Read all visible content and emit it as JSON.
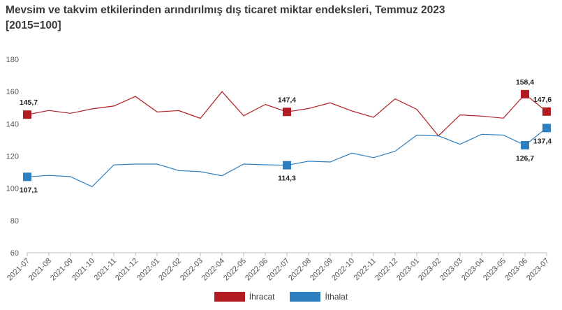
{
  "title_line1": "Mevsim ve takvim etkilerinden arındırılmış dış ticaret miktar endeksleri, Temmuz 2023",
  "title_line2": "[2015=100]",
  "chart_data": {
    "type": "line",
    "title": "Mevsim ve takvim etkilerinden arındırılmış dış ticaret miktar endeksleri, Temmuz 2023 [2015=100]",
    "categories": [
      "2021-07",
      "2021-08",
      "2021-09",
      "2021-10",
      "2021-11",
      "2021-12",
      "2022-01",
      "2022-02",
      "2022-03",
      "2022-04",
      "2022-05",
      "2022-06",
      "2022-07",
      "2022-08",
      "2022-09",
      "2022-10",
      "2022-11",
      "2022-12",
      "2023-01",
      "2023-02",
      "2023-03",
      "2023-04",
      "2023-05",
      "2023-06",
      "2023-07"
    ],
    "ylim": [
      60,
      180
    ],
    "yticks": [
      60,
      80,
      100,
      120,
      140,
      160,
      180
    ],
    "grid": false,
    "legend_position": "bottom",
    "series": [
      {
        "name": "İhracat",
        "color": "#b01c22",
        "values": [
          145.7,
          148.3,
          146.5,
          149.3,
          151.0,
          157.0,
          147.4,
          148.2,
          143.4,
          160.0,
          145.0,
          152.0,
          147.4,
          149.5,
          153.0,
          148.0,
          144.0,
          155.5,
          149.0,
          132.5,
          145.5,
          144.8,
          143.5,
          158.4,
          147.6
        ],
        "labels": [
          {
            "index": 0,
            "text": "145,7",
            "pos": "above"
          },
          {
            "index": 12,
            "text": "147,4",
            "pos": "above"
          },
          {
            "index": 23,
            "text": "158,4",
            "pos": "above"
          },
          {
            "index": 24,
            "text": "147,6",
            "pos": "above"
          }
        ]
      },
      {
        "name": "İthalat",
        "color": "#2e7fbf",
        "values": [
          107.1,
          108.0,
          107.2,
          101.0,
          114.5,
          115.0,
          115.0,
          111.0,
          110.3,
          107.8,
          115.0,
          114.6,
          114.3,
          116.8,
          116.3,
          121.8,
          119.0,
          123.0,
          133.0,
          132.5,
          127.3,
          133.5,
          133.0,
          126.7,
          137.4
        ],
        "labels": [
          {
            "index": 0,
            "text": "107,1",
            "pos": "below"
          },
          {
            "index": 12,
            "text": "114,3",
            "pos": "below"
          },
          {
            "index": 23,
            "text": "126,7",
            "pos": "below"
          },
          {
            "index": 24,
            "text": "137,4",
            "pos": "below"
          }
        ]
      }
    ]
  }
}
